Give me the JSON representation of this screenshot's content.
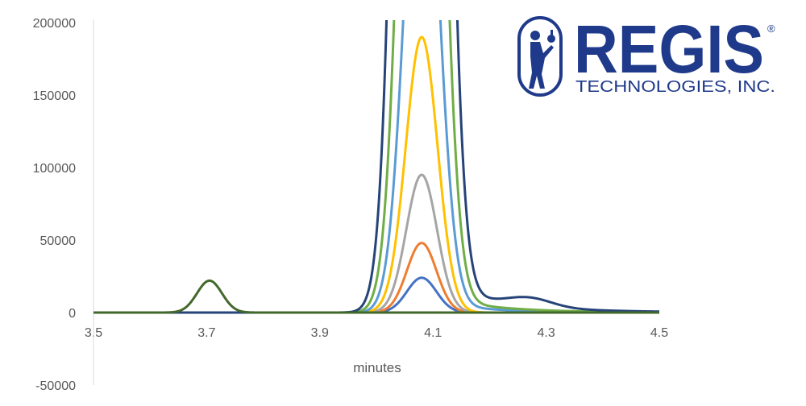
{
  "chart_data": {
    "type": "line",
    "title": "",
    "xlabel": "minutes",
    "ylabel": "",
    "xlim": [
      3.5,
      4.5
    ],
    "ylim": [
      -50000,
      200000
    ],
    "x_ticks": [
      "3.5",
      "3.7",
      "3.9",
      "4.1",
      "4.3",
      "4.5"
    ],
    "y_ticks": [
      "200000",
      "150000",
      "100000",
      "50000",
      "0",
      "-50000"
    ],
    "grid": false,
    "legend": "none",
    "series": [
      {
        "color": "#4472c4",
        "peaks": [
          {
            "center": 4.08,
            "height": 24000,
            "width": 0.026
          }
        ],
        "tail": null
      },
      {
        "color": "#ed7d31",
        "peaks": [
          {
            "center": 4.08,
            "height": 48000,
            "width": 0.026
          }
        ],
        "tail": null
      },
      {
        "color": "#a5a5a5",
        "peaks": [
          {
            "center": 4.08,
            "height": 95000,
            "width": 0.027
          }
        ],
        "tail": null
      },
      {
        "color": "#ffc000",
        "peaks": [
          {
            "center": 4.08,
            "height": 190000,
            "width": 0.028
          }
        ],
        "tail": null
      },
      {
        "color": "#5b9bd5",
        "peaks": [
          {
            "center": 4.08,
            "height": 380000,
            "width": 0.029
          }
        ],
        "tail": {
          "amp": 9000,
          "decay": 0.09
        }
      },
      {
        "color": "#70ad47",
        "peaks": [
          {
            "center": 4.08,
            "height": 760000,
            "width": 0.03
          }
        ],
        "tail": {
          "amp": 14000,
          "decay": 0.1
        }
      },
      {
        "color": "#264478",
        "peaks": [
          {
            "center": 4.08,
            "height": 1500000,
            "width": 0.031
          },
          {
            "center": 4.27,
            "height": 6000,
            "width": 0.04
          }
        ],
        "tail": {
          "amp": 22000,
          "decay": 0.12
        }
      },
      {
        "color": "#43682b",
        "peaks": [
          {
            "center": 3.705,
            "height": 22000,
            "width": 0.022
          }
        ],
        "tail": null
      }
    ]
  },
  "logo": {
    "word": "REGIS",
    "registered": "®",
    "subtitle": "TECHNOLOGIES, INC.",
    "color": "#1f3a8a",
    "icon": "scientist-holding-flask-icon"
  }
}
